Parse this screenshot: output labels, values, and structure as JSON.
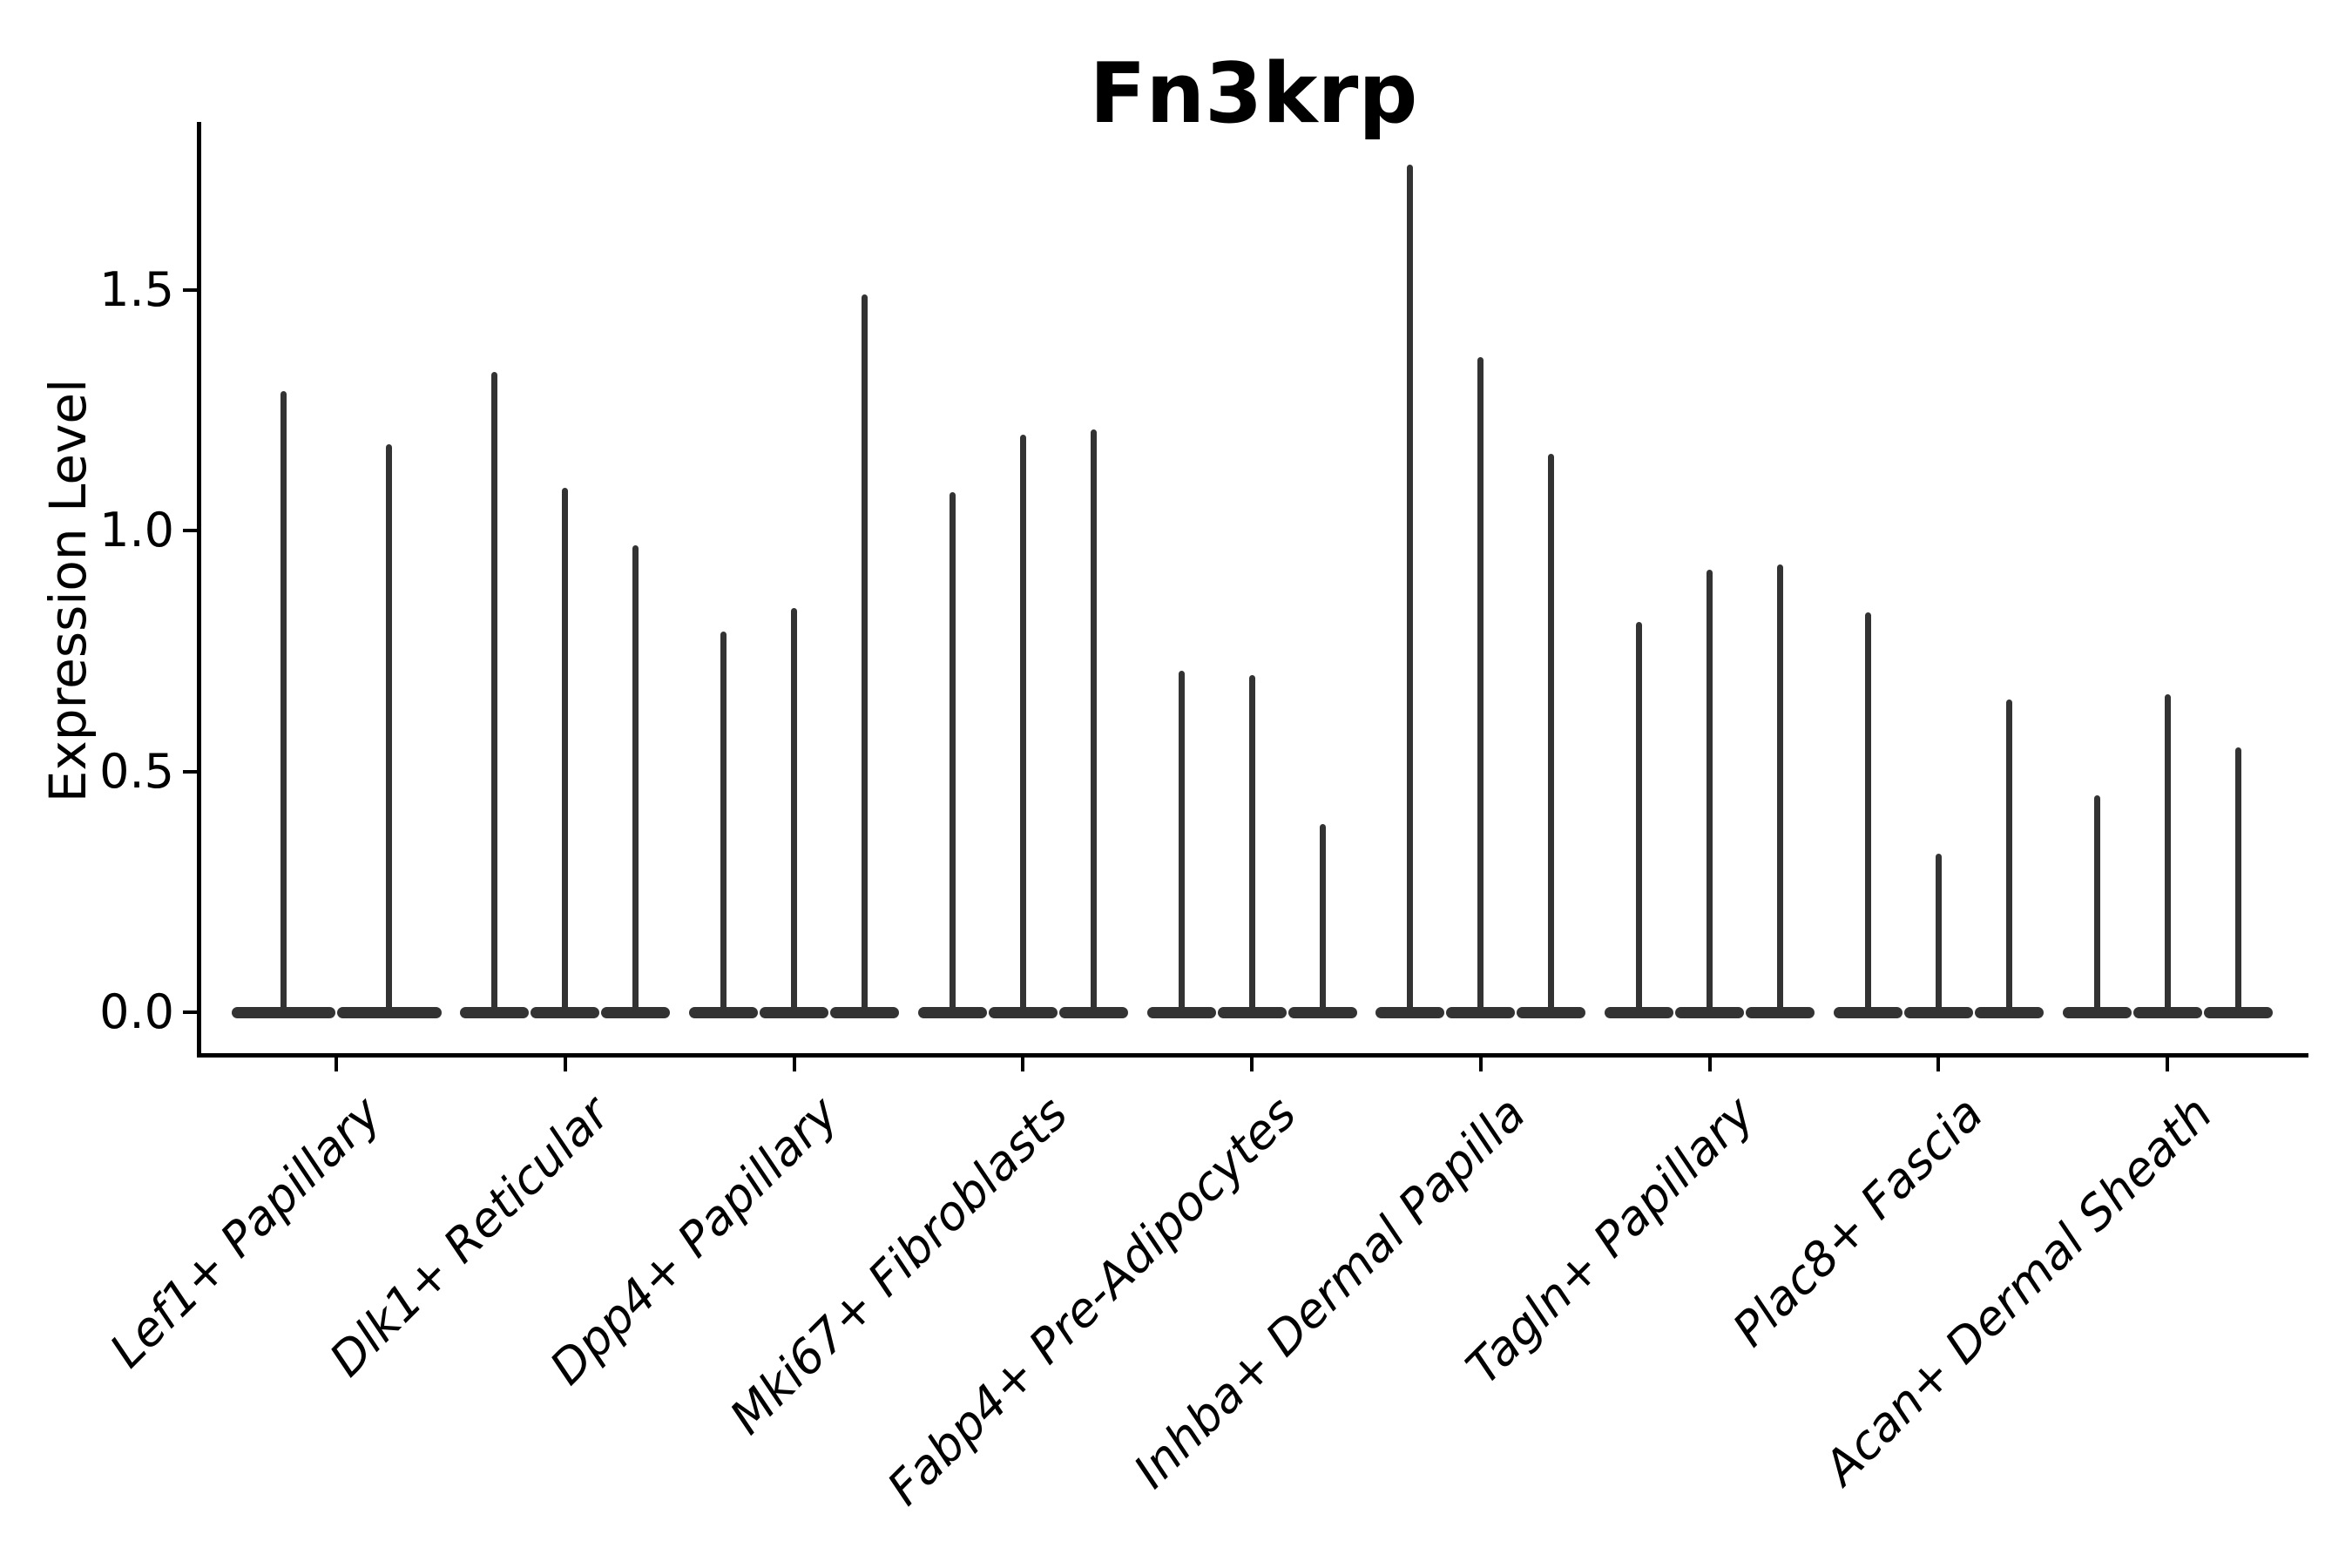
{
  "figure": {
    "title": "Fn3krp",
    "ylabel": "Expression Level"
  },
  "chart_data": {
    "type": "violin",
    "title": "Fn3krp",
    "xlabel": "",
    "ylabel": "Expression Level",
    "ytick_labels": [
      "0.0",
      "0.5",
      "1.0",
      "1.5"
    ],
    "ytick_values": [
      0.0,
      0.5,
      1.0,
      1.5
    ],
    "ylim": [
      -0.09,
      1.85
    ],
    "grid": false,
    "legend": false,
    "categories": [
      "Lef1+ Papillary",
      "Dlk1+ Reticular",
      "Dpp4+ Papillary",
      "Mki67+ Fibroblasts",
      "Fabp4+ Pre-Adipocytes",
      "Inhba+ Dermal Papilla",
      "Tagln+ Papillary",
      "Plac8+ Fascia",
      "Acan+ Dermal Sheath"
    ],
    "groups": [
      {
        "category": "Lef1+ Papillary",
        "violin_spike_max_values": [
          1.29,
          1.18
        ]
      },
      {
        "category": "Dlk1+ Reticular",
        "violin_spike_max_values": [
          1.33,
          1.09,
          0.97
        ]
      },
      {
        "category": "Dpp4+ Papillary",
        "violin_spike_max_values": [
          0.79,
          0.84,
          1.49
        ]
      },
      {
        "category": "Mki67+ Fibroblasts",
        "violin_spike_max_values": [
          1.08,
          1.2,
          1.21
        ]
      },
      {
        "category": "Fabp4+ Pre-Adipocytes",
        "violin_spike_max_values": [
          0.71,
          0.7,
          0.39
        ]
      },
      {
        "category": "Inhba+ Dermal Papilla",
        "violin_spike_max_values": [
          1.76,
          1.36,
          1.16
        ]
      },
      {
        "category": "Tagln+ Papillary",
        "violin_spike_max_values": [
          0.81,
          0.92,
          0.93
        ]
      },
      {
        "category": "Plac8+ Fascia",
        "violin_spike_max_values": [
          0.83,
          0.33,
          0.65
        ]
      },
      {
        "category": "Acan+ Dermal Sheath",
        "violin_spike_max_values": [
          0.45,
          0.66,
          0.55
        ]
      }
    ],
    "violin_shape_note": "Each violin is a flat wide base at expression 0 with a thin vertical spike up to its max value",
    "colors": {
      "violin": "#333333",
      "axis": "#000000",
      "text": "#000000",
      "background": "#ffffff"
    }
  }
}
